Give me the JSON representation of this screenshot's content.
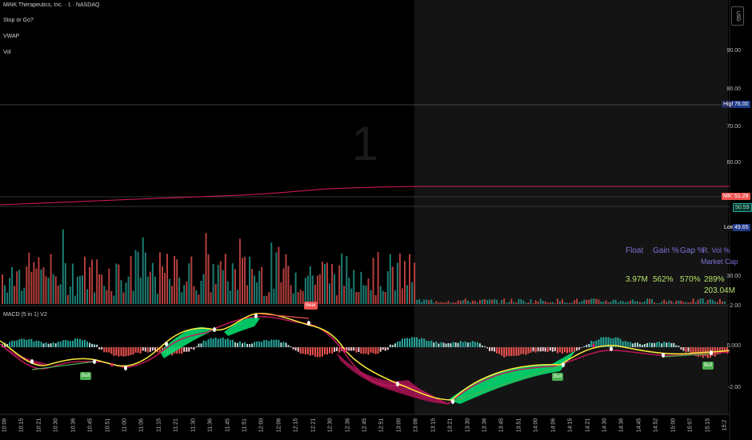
{
  "legend": {
    "symbol": "MiNK Therapeutics, Inc. · 1 · NASDAQ",
    "ind1": "Stop or Go?",
    "ind2": "VWAP",
    "ind3": "Vol",
    "macd": "MACD (5 in 1) V2"
  },
  "watermark": "1",
  "currency": "USD",
  "price_axis": [
    "90.00",
    "80.00",
    "70.00",
    "60.00",
    "30.00"
  ],
  "tags": {
    "high_label": "High",
    "high_value": "76.00",
    "mkt_label": "MKT",
    "mkt_value": "51.28",
    "vwap_value": "50.59",
    "low_label": "Low",
    "low_value": "49.65"
  },
  "macd_axis": [
    "2.00",
    "0.000",
    "-2.00"
  ],
  "stats": {
    "headers": [
      "Float",
      "Gain %",
      "Gap %",
      "R. Vol %",
      "Market Cap"
    ],
    "values": [
      "3.97M",
      "562%",
      "570%",
      "289%",
      "203.04M"
    ]
  },
  "signals": {
    "bear": "Bear",
    "bull1": "Bull",
    "bull2": "Bull",
    "bull3": "Bull"
  },
  "time_axis": [
    "10:06",
    "10:15",
    "10:21",
    "10:30",
    "10:36",
    "10:45",
    "10:51",
    "11:00",
    "11:06",
    "11:15",
    "11:21",
    "11:30",
    "11:36",
    "11:45",
    "11:51",
    "12:00",
    "12:06",
    "12:15",
    "12:21",
    "12:30",
    "12:36",
    "12:45",
    "12:51",
    "13:00",
    "13:06",
    "13:15",
    "13:21",
    "13:30",
    "13:36",
    "13:45",
    "13:51",
    "14:00",
    "14:06",
    "14:15",
    "14:21",
    "14:30",
    "14:36",
    "14:45",
    "14:52",
    "15:00",
    "15:07",
    "15:15",
    "15:2"
  ],
  "colors": {
    "bull": "#26a69a",
    "bear": "#ef5350",
    "vwap": "#d81b60",
    "macd_line": "#ffeb3b",
    "signal_line": "#c2185b",
    "fill_up": "#00e676",
    "fill_dn": "#ad1457",
    "shade": "#161616"
  }
}
